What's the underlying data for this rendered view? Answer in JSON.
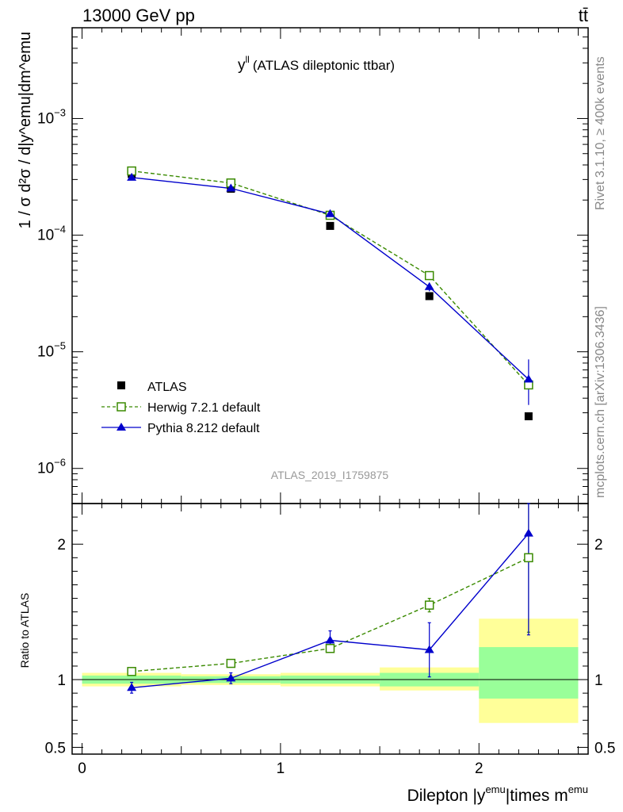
{
  "header": {
    "energy_label": "13000 GeV pp",
    "process_label": "tt̄"
  },
  "side_labels": {
    "rivet": "Rivet 3.1.10, ≥ 400k events",
    "mcplots": "mcplots.cern.ch [arXiv:1306.3436]"
  },
  "chart_data": [
    {
      "type": "scatter",
      "panel": "main",
      "title": "y",
      "title_superscript": "ll",
      "title_suffix": "(ATLAS dileptonic ttbar)",
      "watermark": "ATLAS_2019_I1759875",
      "ylabel": "1 / σ d²σ / d|y^emu|dm^emu",
      "yscale": "log",
      "ylim": [
        5e-07,
        0.006
      ],
      "xlim": [
        -0.05,
        2.55
      ],
      "y_tick_labels": [
        {
          "value": 0.001,
          "mantissa": "10",
          "exponent": "−3"
        },
        {
          "value": 0.0001,
          "mantissa": "10",
          "exponent": "−4"
        },
        {
          "value": 1e-05,
          "mantissa": "10",
          "exponent": "−5"
        },
        {
          "value": 1e-06,
          "mantissa": "10",
          "exponent": "−6"
        }
      ],
      "legend_position": "lower-left",
      "x": [
        0.25,
        0.75,
        1.25,
        1.75,
        2.25
      ],
      "series": [
        {
          "name": "ATLAS",
          "color": "#000000",
          "marker": "filled-square",
          "values": [
            0.000335,
            0.00025,
            0.00012,
            3e-05,
            2.8e-06
          ]
        },
        {
          "name": "Herwig 7.2.1 default",
          "color": "#3a8a00",
          "marker": "open-square",
          "line": "dashed",
          "values": [
            0.000355,
            0.00028,
            0.000148,
            4.5e-05,
            5.2e-06
          ]
        },
        {
          "name": "Pythia 8.212 default",
          "color": "#0000cc",
          "marker": "filled-triangle",
          "line": "solid",
          "values": [
            0.000312,
            0.000252,
            0.000152,
            3.6e-05,
            5.8e-06
          ],
          "err_low": [
            4.5e-06,
            4.5e-06,
            8e-06,
            3e-06,
            2.3e-06
          ],
          "err_high": [
            4.5e-06,
            4.5e-06,
            8e-06,
            3e-06,
            2.8e-06
          ]
        }
      ]
    },
    {
      "type": "scatter",
      "panel": "ratio",
      "ylabel": "Ratio to ATLAS",
      "xlabel": "Dilepton |y",
      "xlabel_sup1": "emu",
      "xlabel_mid": "|times m",
      "xlabel_sup2": "emu",
      "ylim": [
        0.45,
        2.3
      ],
      "xlim": [
        -0.05,
        2.55
      ],
      "x_ticks": [
        0,
        1,
        2
      ],
      "x_tick_labels": [
        "0",
        "1",
        "2"
      ],
      "y_ticks": [
        0.5,
        1,
        2
      ],
      "y_tick_labels": [
        "0.5",
        "1",
        "2"
      ],
      "bands": [
        {
          "x0": 0.0,
          "x1": 0.5,
          "yellow": [
            0.95,
            1.05
          ],
          "green": [
            0.97,
            1.03
          ]
        },
        {
          "x0": 0.5,
          "x1": 1.0,
          "yellow": [
            0.96,
            1.04
          ],
          "green": [
            0.975,
            1.025
          ]
        },
        {
          "x0": 1.0,
          "x1": 1.5,
          "yellow": [
            0.95,
            1.05
          ],
          "green": [
            0.97,
            1.03
          ]
        },
        {
          "x0": 1.5,
          "x1": 2.0,
          "yellow": [
            0.92,
            1.09
          ],
          "green": [
            0.95,
            1.05
          ]
        },
        {
          "x0": 2.0,
          "x1": 2.5,
          "yellow": [
            0.68,
            1.45
          ],
          "green": [
            0.86,
            1.24
          ]
        }
      ],
      "x": [
        0.25,
        0.75,
        1.25,
        1.75,
        2.25
      ],
      "series": [
        {
          "name": "Herwig 7.2.1 default",
          "color": "#3a8a00",
          "marker": "open-square",
          "line": "dashed",
          "values": [
            1.06,
            1.12,
            1.23,
            1.55,
            1.9
          ],
          "err_low": [
            0.01,
            0.01,
            0.03,
            0.05,
            0.55
          ],
          "err_high": [
            0.01,
            0.01,
            0.03,
            0.05,
            0.55
          ]
        },
        {
          "name": "Pythia 8.212 default",
          "color": "#0000cc",
          "marker": "filled-triangle",
          "line": "solid",
          "values": [
            0.94,
            1.01,
            1.29,
            1.22,
            2.08
          ],
          "err_low": [
            0.04,
            0.04,
            0.07,
            0.2,
            0.75
          ],
          "err_high": [
            0.04,
            0.04,
            0.07,
            0.2,
            0.75
          ]
        }
      ]
    }
  ]
}
